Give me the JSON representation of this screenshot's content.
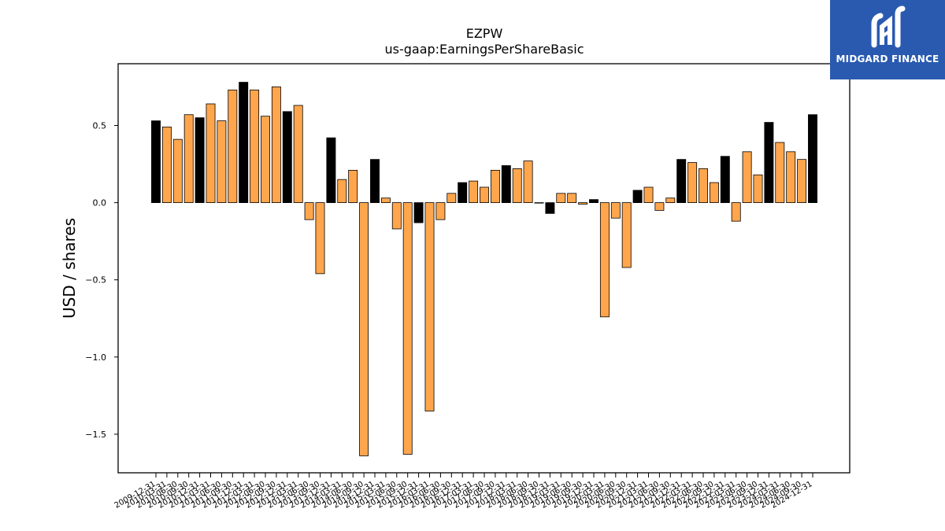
{
  "logo": {
    "text": "MIDGARD FINANCE"
  },
  "chart_data": {
    "type": "bar",
    "title": "EZPW",
    "subtitle": "us-gaap:EarningsPerShareBasic",
    "xlabel": "",
    "ylabel": "USD / shares",
    "ylim": [
      -1.75,
      0.9
    ],
    "yticks": [
      0.5,
      0.0,
      -0.5,
      -1.0,
      -1.5
    ],
    "ytick_labels": [
      "0.5",
      "0.0",
      "−0.5",
      "−1.0",
      "−1.5"
    ],
    "grid": false,
    "colors": {
      "annual": "#000000",
      "quarterly": "#ffa64d",
      "edge": "#000000"
    },
    "categories": [
      "2009-12-31",
      "2010-03-31",
      "2010-06-30",
      "2010-09-30",
      "2010-12-31",
      "2011-03-31",
      "2011-06-30",
      "2011-09-30",
      "2011-12-31",
      "2012-03-31",
      "2012-06-30",
      "2012-09-30",
      "2012-12-31",
      "2013-03-31",
      "2013-06-30",
      "2013-09-30",
      "2013-12-31",
      "2014-03-31",
      "2014-06-30",
      "2014-09-30",
      "2014-12-31",
      "2015-03-31",
      "2015-06-30",
      "2015-09-30",
      "2015-12-31",
      "2016-03-31",
      "2016-06-30",
      "2016-09-30",
      "2016-12-31",
      "2017-03-31",
      "2017-06-30",
      "2017-09-30",
      "2017-12-31",
      "2018-03-31",
      "2018-06-30",
      "2018-09-30",
      "2018-12-31",
      "2019-03-31",
      "2019-06-30",
      "2019-09-30",
      "2019-12-31",
      "2020-03-31",
      "2020-06-30",
      "2020-09-30",
      "2020-12-31",
      "2021-03-31",
      "2021-06-30",
      "2021-09-30",
      "2021-12-31",
      "2022-03-31",
      "2022-06-30",
      "2022-09-30",
      "2022-12-31",
      "2023-03-31",
      "2023-06-30",
      "2023-09-30",
      "2023-12-31",
      "2024-03-31",
      "2024-06-30",
      "2024-09-30",
      "2024-12-31"
    ],
    "values": [
      0.53,
      0.49,
      0.41,
      0.57,
      0.55,
      0.64,
      0.53,
      0.73,
      0.78,
      0.73,
      0.56,
      0.75,
      0.59,
      0.63,
      -0.11,
      -0.46,
      0.42,
      0.15,
      0.21,
      -1.64,
      0.28,
      0.03,
      -0.17,
      -1.63,
      -0.13,
      -1.35,
      -0.11,
      0.06,
      0.13,
      0.14,
      0.1,
      0.21,
      0.24,
      0.22,
      0.27,
      0.0,
      -0.07,
      0.06,
      0.06,
      -0.01,
      0.02,
      -0.74,
      -0.1,
      -0.42,
      0.08,
      0.1,
      -0.05,
      0.03,
      0.28,
      0.26,
      0.22,
      0.13,
      0.3,
      -0.12,
      0.33,
      0.18,
      0.52,
      0.39,
      0.33,
      0.28,
      0.57
    ],
    "annual": [
      true,
      false,
      false,
      false,
      true,
      false,
      false,
      false,
      true,
      false,
      false,
      false,
      true,
      false,
      false,
      false,
      true,
      false,
      false,
      false,
      true,
      false,
      false,
      false,
      true,
      false,
      false,
      false,
      true,
      false,
      false,
      false,
      true,
      false,
      false,
      false,
      true,
      false,
      false,
      false,
      true,
      false,
      false,
      false,
      true,
      false,
      false,
      false,
      true,
      false,
      false,
      false,
      true,
      false,
      false,
      false,
      true,
      false,
      false,
      false,
      true
    ]
  }
}
